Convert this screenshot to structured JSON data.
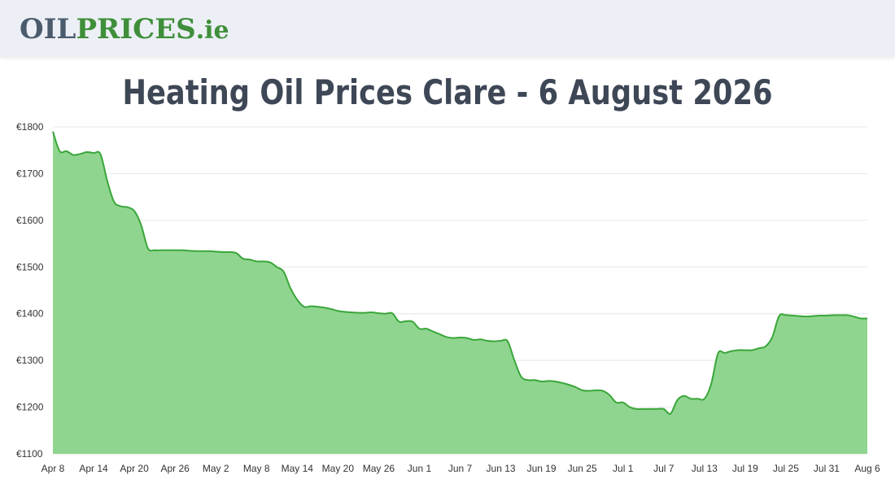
{
  "header": {
    "logo_part1": "OIL",
    "logo_part2": "PRICES",
    "logo_part3": ".ie"
  },
  "page": {
    "title": "Heating Oil Prices Clare - 6 August 2026"
  },
  "colors": {
    "line": "#3aa63a",
    "fill": "#8fd58f",
    "grid": "#e6e6e6",
    "logo_dark": "#4a5b6d",
    "logo_green": "#3f8f3a",
    "title": "#3e4756"
  },
  "chart_data": {
    "type": "area",
    "title": "Heating Oil Prices Clare - 6 August 2026",
    "xlabel": "",
    "ylabel": "",
    "ylim": [
      1100,
      1800
    ],
    "yticks": [
      1100,
      1200,
      1300,
      1400,
      1500,
      1600,
      1700,
      1800
    ],
    "ytick_labels": [
      "€1100",
      "€1200",
      "€1300",
      "€1400",
      "€1500",
      "€1600",
      "€1700",
      "€1800"
    ],
    "xtick_labels": [
      "Apr 8",
      "Apr 14",
      "Apr 20",
      "Apr 26",
      "May 2",
      "May 8",
      "May 14",
      "May 20",
      "May 26",
      "Jun 1",
      "Jun 7",
      "Jun 13",
      "Jun 19",
      "Jun 25",
      "Jul 1",
      "Jul 7",
      "Jul 13",
      "Jul 19",
      "Jul 25",
      "Jul 31",
      "Aug 6"
    ],
    "grid": true,
    "legend": "none",
    "series": [
      {
        "x": [
          "Apr 8",
          "Apr 9",
          "Apr 10",
          "Apr 11",
          "Apr 12",
          "Apr 13",
          "Apr 14",
          "Apr 15",
          "Apr 16",
          "Apr 17",
          "Apr 18",
          "Apr 19",
          "Apr 20",
          "Apr 21",
          "Apr 22",
          "Apr 23",
          "Apr 24",
          "Apr 25",
          "Apr 26",
          "Apr 27",
          "Apr 28",
          "Apr 29",
          "Apr 30",
          "May 1",
          "May 2",
          "May 3",
          "May 4",
          "May 5",
          "May 6",
          "May 7",
          "May 8",
          "May 9",
          "May 10",
          "May 11",
          "May 12",
          "May 13",
          "May 14",
          "May 15",
          "May 16",
          "May 17",
          "May 18",
          "May 19",
          "May 20",
          "May 21",
          "May 22",
          "May 23",
          "May 24",
          "May 25",
          "May 26",
          "May 27",
          "May 28",
          "May 29",
          "May 30",
          "May 31",
          "Jun 1",
          "Jun 2",
          "Jun 3",
          "Jun 4",
          "Jun 5",
          "Jun 6",
          "Jun 7",
          "Jun 8",
          "Jun 9",
          "Jun 10",
          "Jun 11",
          "Jun 12",
          "Jun 13",
          "Jun 14",
          "Jun 15",
          "Jun 16",
          "Jun 17",
          "Jun 18",
          "Jun 19",
          "Jun 20",
          "Jun 21",
          "Jun 22",
          "Jun 23",
          "Jun 24",
          "Jun 25",
          "Jun 26",
          "Jun 27",
          "Jun 28",
          "Jun 29",
          "Jun 30",
          "Jul 1",
          "Jul 2",
          "Jul 3",
          "Jul 4",
          "Jul 5",
          "Jul 6",
          "Jul 7",
          "Jul 8",
          "Jul 9",
          "Jul 10",
          "Jul 11",
          "Jul 12",
          "Jul 13",
          "Jul 14",
          "Jul 15",
          "Jul 16",
          "Jul 17",
          "Jul 18",
          "Jul 19",
          "Jul 20",
          "Jul 21",
          "Jul 22",
          "Jul 23",
          "Jul 24",
          "Jul 25",
          "Jul 26",
          "Jul 27",
          "Jul 28",
          "Jul 29",
          "Jul 30",
          "Jul 31",
          "Aug 1",
          "Aug 2",
          "Aug 3",
          "Aug 4",
          "Aug 5",
          "Aug 6"
        ],
        "values": [
          1790,
          1748,
          1748,
          1740,
          1742,
          1746,
          1744,
          1742,
          1685,
          1640,
          1630,
          1628,
          1620,
          1590,
          1540,
          1536,
          1536,
          1536,
          1536,
          1536,
          1535,
          1534,
          1534,
          1534,
          1533,
          1532,
          1532,
          1530,
          1518,
          1516,
          1512,
          1512,
          1510,
          1500,
          1490,
          1455,
          1430,
          1415,
          1416,
          1415,
          1413,
          1410,
          1406,
          1404,
          1403,
          1402,
          1402,
          1403,
          1401,
          1400,
          1401,
          1383,
          1384,
          1383,
          1368,
          1368,
          1362,
          1356,
          1350,
          1348,
          1349,
          1348,
          1344,
          1345,
          1342,
          1341,
          1342,
          1341,
          1300,
          1265,
          1258,
          1258,
          1255,
          1256,
          1255,
          1252,
          1248,
          1243,
          1236,
          1235,
          1236,
          1235,
          1226,
          1210,
          1210,
          1200,
          1196,
          1196,
          1196,
          1196,
          1196,
          1186,
          1215,
          1224,
          1218,
          1218,
          1218,
          1250,
          1315,
          1316,
          1320,
          1322,
          1322,
          1322,
          1326,
          1330,
          1350,
          1395,
          1397,
          1396,
          1395,
          1394,
          1395,
          1396,
          1396,
          1397,
          1397,
          1397,
          1394,
          1390,
          1390
        ]
      }
    ]
  }
}
